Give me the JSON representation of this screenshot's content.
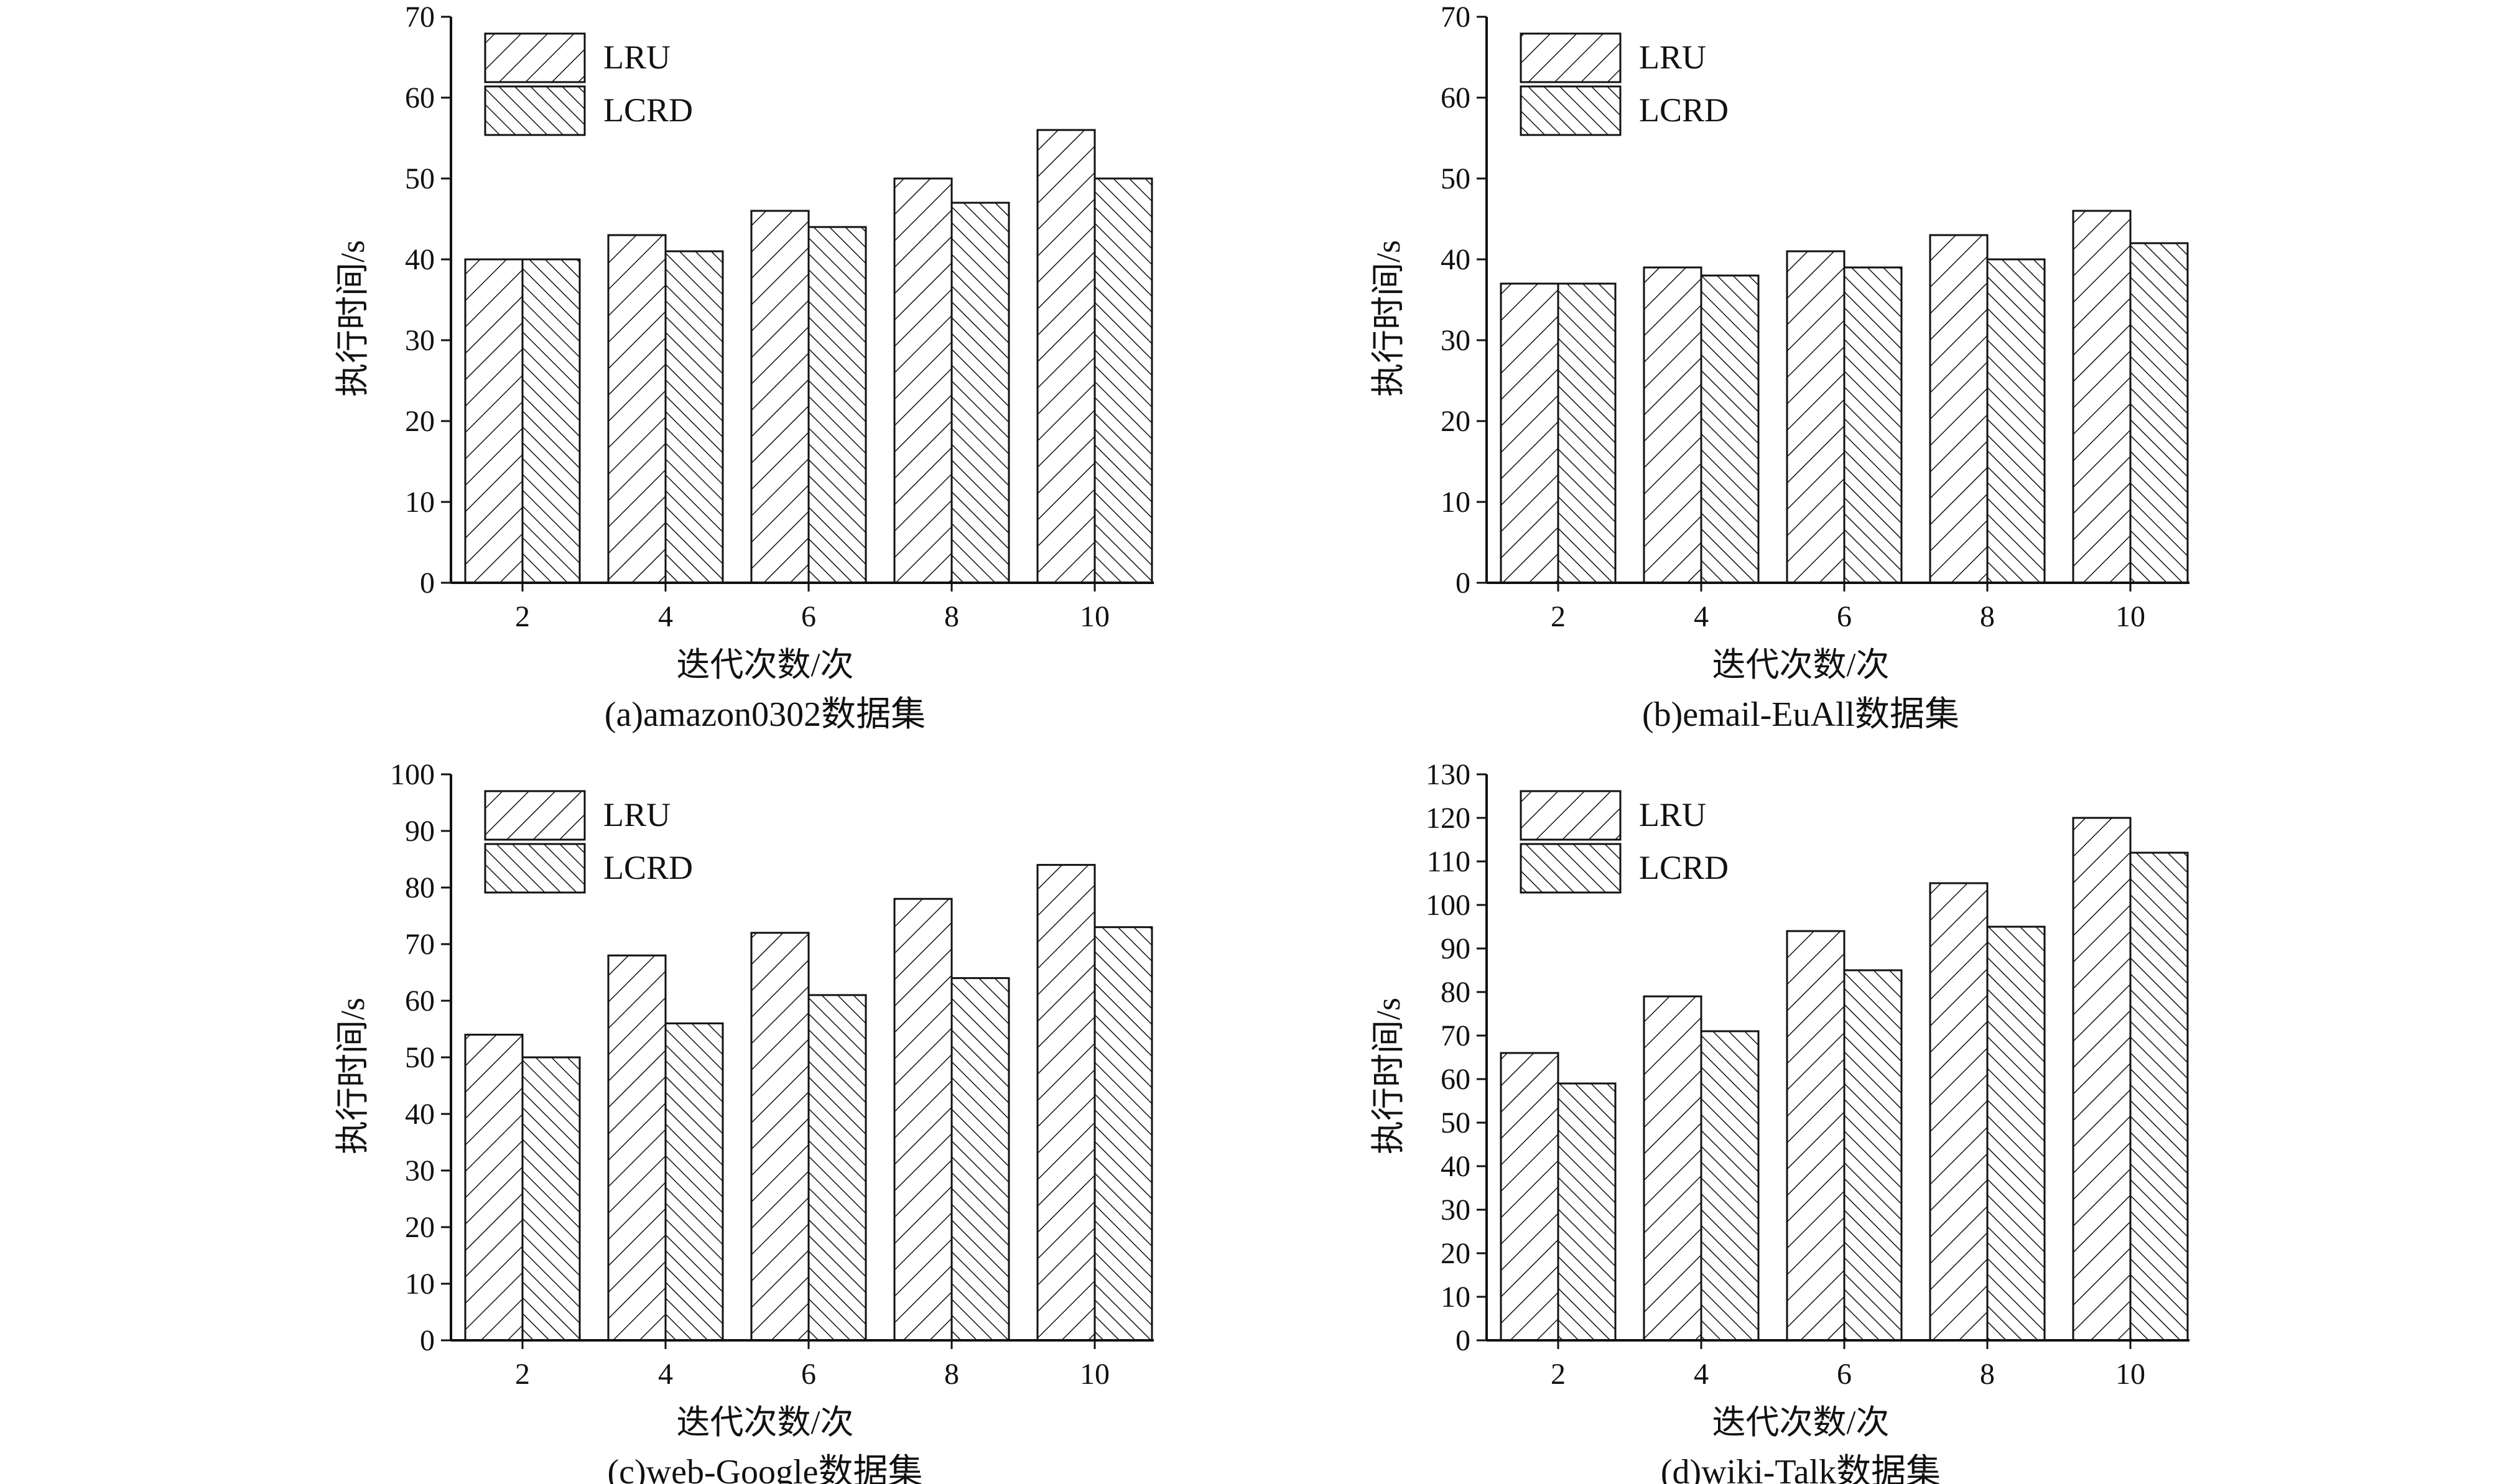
{
  "legend": [
    "LRU",
    "LCRD"
  ],
  "chart_data": [
    {
      "type": "bar",
      "caption": "(a)amazon0302数据集",
      "categories": [
        "2",
        "4",
        "6",
        "8",
        "10"
      ],
      "series": [
        {
          "name": "LRU",
          "values": [
            40,
            43,
            46,
            50,
            56
          ]
        },
        {
          "name": "LCRD",
          "values": [
            40,
            41,
            44,
            47,
            50
          ]
        }
      ],
      "xlabel": "迭代次数/次",
      "ylabel": "执行时间/s",
      "ylim": [
        0,
        70
      ],
      "yticks": [
        "0",
        "10",
        "20",
        "30",
        "40",
        "50",
        "60",
        "70"
      ],
      "legend_position": "top-left"
    },
    {
      "type": "bar",
      "caption": "(b)email-EuAll数据集",
      "categories": [
        "2",
        "4",
        "6",
        "8",
        "10"
      ],
      "series": [
        {
          "name": "LRU",
          "values": [
            37,
            39,
            41,
            43,
            46
          ]
        },
        {
          "name": "LCRD",
          "values": [
            37,
            38,
            39,
            40,
            42
          ]
        }
      ],
      "xlabel": "迭代次数/次",
      "ylabel": "执行时间/s",
      "ylim": [
        0,
        70
      ],
      "yticks": [
        "0",
        "10",
        "20",
        "30",
        "40",
        "50",
        "60",
        "70"
      ],
      "legend_position": "top-left"
    },
    {
      "type": "bar",
      "caption": "(c)web-Google数据集",
      "categories": [
        "2",
        "4",
        "6",
        "8",
        "10"
      ],
      "series": [
        {
          "name": "LRU",
          "values": [
            54,
            68,
            72,
            78,
            84
          ]
        },
        {
          "name": "LCRD",
          "values": [
            50,
            56,
            61,
            64,
            73
          ]
        }
      ],
      "xlabel": "迭代次数/次",
      "ylabel": "执行时间/s",
      "ylim": [
        0,
        100
      ],
      "yticks": [
        "0",
        "10",
        "20",
        "30",
        "40",
        "50",
        "60",
        "70",
        "80",
        "90",
        "100"
      ],
      "legend_position": "top-left"
    },
    {
      "type": "bar",
      "caption": "(d)wiki-Talk数据集",
      "categories": [
        "2",
        "4",
        "6",
        "8",
        "10"
      ],
      "series": [
        {
          "name": "LRU",
          "values": [
            66,
            79,
            94,
            105,
            120
          ]
        },
        {
          "name": "LCRD",
          "values": [
            59,
            71,
            85,
            95,
            112
          ]
        }
      ],
      "xlabel": "迭代次数/次",
      "ylabel": "执行时间/s",
      "ylim": [
        0,
        130
      ],
      "yticks": [
        "0",
        "10",
        "20",
        "30",
        "40",
        "50",
        "60",
        "70",
        "80",
        "90",
        "100",
        "110",
        "120",
        "130"
      ],
      "legend_position": "top-left"
    }
  ]
}
